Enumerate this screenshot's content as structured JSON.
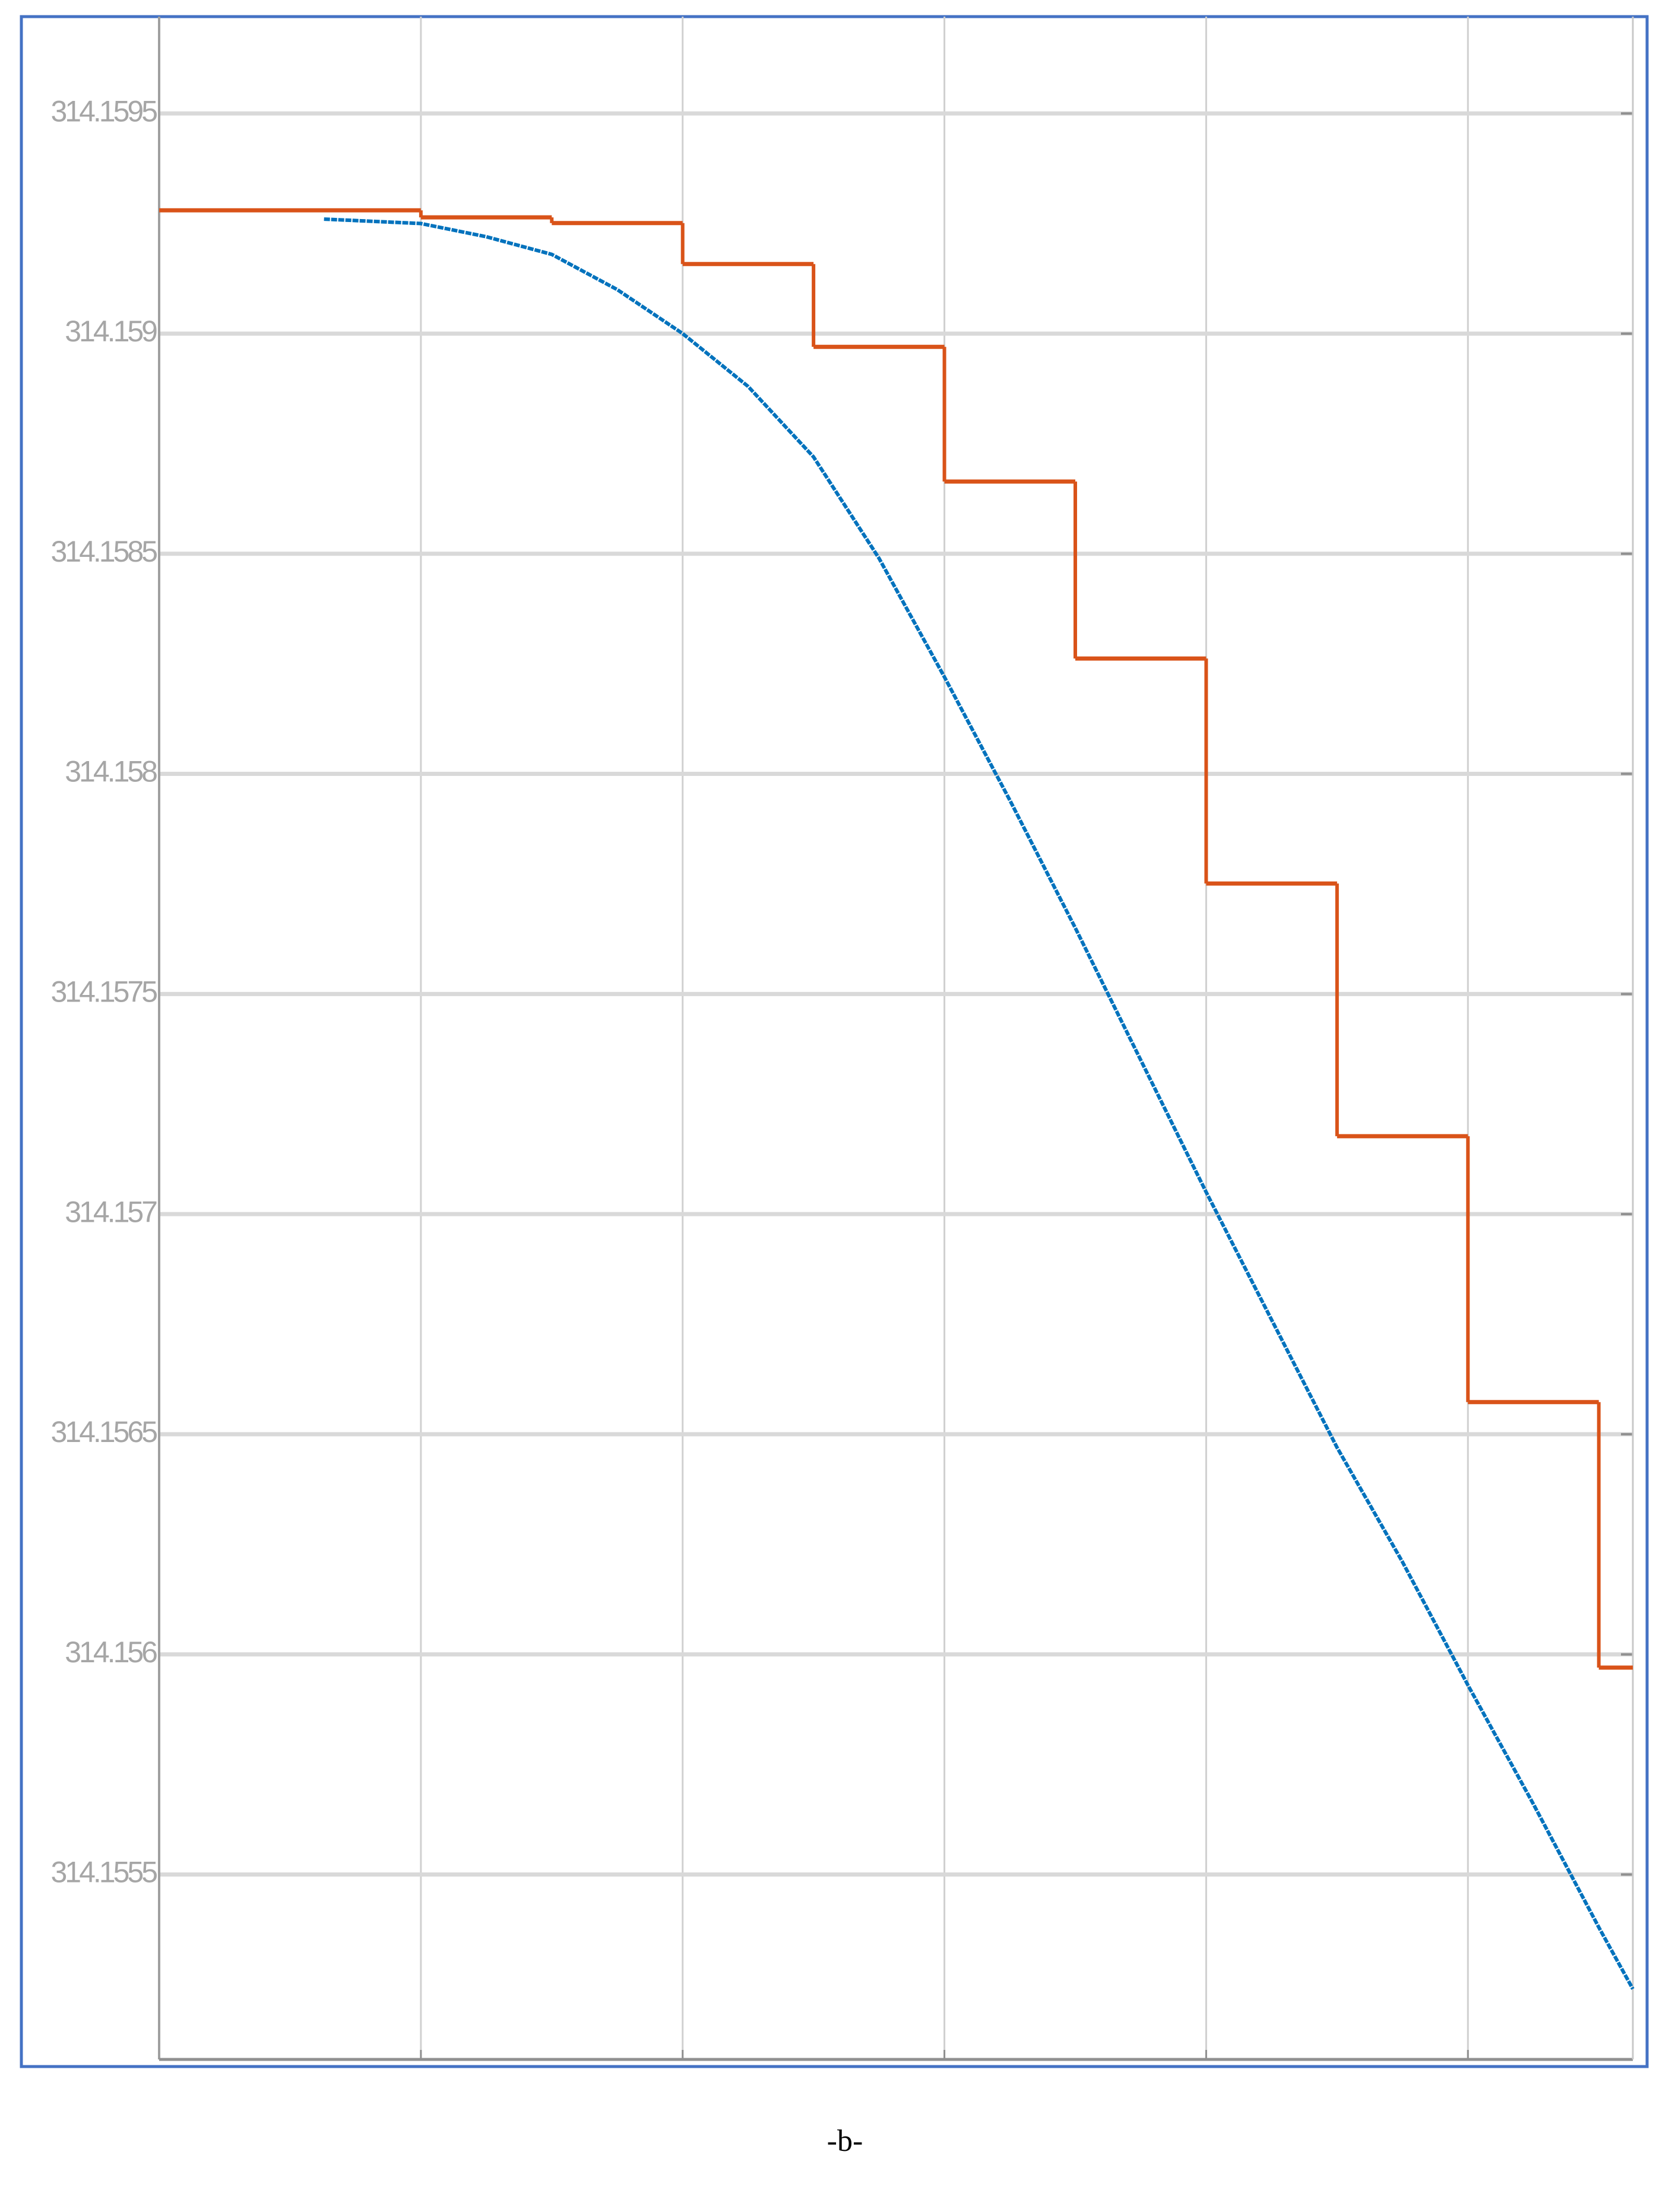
{
  "chart_data": {
    "type": "line",
    "caption": "-b-",
    "xlim": [
      0,
      5.63
    ],
    "xticks": [
      0,
      1,
      2,
      3,
      4,
      5
    ],
    "ylim": [
      314.15508,
      314.15972
    ],
    "yticks": [
      314.1555,
      314.156,
      314.1565,
      314.157,
      314.1575,
      314.158,
      314.1585,
      314.159,
      314.1595
    ],
    "grid": true,
    "series": [
      {
        "color": "#d95319",
        "drawstyle": "steps-post",
        "x": [
          0,
          1,
          1.5,
          2,
          2.5,
          3,
          3.5,
          4,
          4.5,
          5,
          5.5
        ],
        "values": [
          314.15928,
          314.159264,
          314.159251,
          314.159158,
          314.15897,
          314.158664,
          314.158262,
          314.157751,
          314.157177,
          314.156573,
          314.15597
        ]
      },
      {
        "color": "#0072bd",
        "x": [
          0.63,
          1,
          1.25,
          1.5,
          1.75,
          2,
          2.25,
          2.5,
          2.75,
          3,
          3.25,
          3.5,
          3.75,
          4,
          4.25,
          4.5,
          4.75,
          5,
          5.25,
          5.5,
          5.63
        ],
        "values": [
          314.15926,
          314.15925,
          314.15922,
          314.15918,
          314.1591,
          314.159,
          314.15888,
          314.15872,
          314.15849,
          314.15822,
          314.15794,
          314.15765,
          314.15735,
          314.15705,
          314.15676,
          314.15647,
          314.15621,
          314.15593,
          314.15566,
          314.15538,
          314.15524
        ]
      }
    ]
  }
}
